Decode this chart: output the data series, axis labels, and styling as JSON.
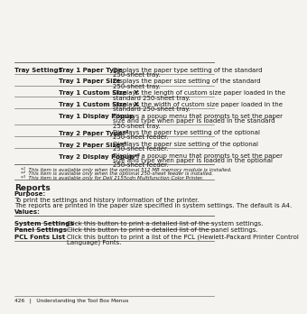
{
  "bg_color": "#f5f3f0",
  "text_color": "#1a1a1a",
  "top_table_rows": [
    {
      "col1": "Tray Settings",
      "col1_bold": true,
      "col2": "Tray 1 Paper Type",
      "col3": "Displays the paper type setting of the standard 250-sheet tray."
    },
    {
      "col1": "",
      "col1_bold": false,
      "col2": "Tray 1 Paper Size",
      "col3": "Displays the paper size setting of the standard 250-sheet tray."
    },
    {
      "col1": "",
      "col1_bold": false,
      "col2": "Tray 1 Custom Size - Y",
      "col3": "Displays the length of custom size paper loaded in the standard 250-sheet tray."
    },
    {
      "col1": "",
      "col1_bold": false,
      "col2": "Tray 1 Custom Size - X",
      "col3": "Displays the width of custom size paper loaded in the standard 250-sheet tray."
    },
    {
      "col1": "",
      "col1_bold": false,
      "col2": "Tray 1 Display Popup",
      "col3": "Displays a popup menu that prompts to set the paper size and type when paper is loaded in the standard 250-sheet tray."
    },
    {
      "col1": "",
      "col1_bold": false,
      "col2": "Tray 2 Paper Type*²",
      "col3": "Displays the paper type setting of the optional 250-sheet feeder."
    },
    {
      "col1": "",
      "col1_bold": false,
      "col2": "Tray 2 Paper Size*²",
      "col3": "Displays the paper size setting of the optional 250-sheet feeder."
    },
    {
      "col1": "",
      "col1_bold": false,
      "col2": "Tray 2 Display Popup*²",
      "col3": "Displays a popup menu that prompts to set the paper size and type when paper is loaded in the optional 250-sheet feeder."
    }
  ],
  "footnotes": [
    "*¹  This item is available only when the optional 512 MB memory module is installed.",
    "*²  This item is available only when the optional 250-sheet feeder is installed.",
    "*³  This item is available only for Dell 2155cdn Multifunction Color Printer."
  ],
  "reports_title": "Reports",
  "purpose_label": "Purpose:",
  "purpose_text1": "To print the settings and history information of the printer.",
  "purpose_text2": "The reports are printed in the paper size specified in system settings. The default is A4.",
  "values_label": "Values:",
  "bottom_table_rows": [
    {
      "col1": "System Settings",
      "col2": "Click this button to print a detailed list of the system settings."
    },
    {
      "col1": "Panel Settings",
      "col2": "Click this button to print a detailed list of the panel settings."
    },
    {
      "col1": "PCL Fonts List",
      "col2": "Click this button to print a list of the PCL (Hewlett-Packard Printer Control Language) Fonts."
    }
  ],
  "footer_text": "426   |   Understanding the Tool Box Menus",
  "fs": 5.0,
  "fs_small": 4.0,
  "fs_title": 6.5,
  "fs_footer": 4.2,
  "line_color": "#555555",
  "c1x": 0.025,
  "c2x": 0.235,
  "c3x": 0.495,
  "rm": 0.975,
  "bc1x": 0.025,
  "bc2x": 0.275
}
